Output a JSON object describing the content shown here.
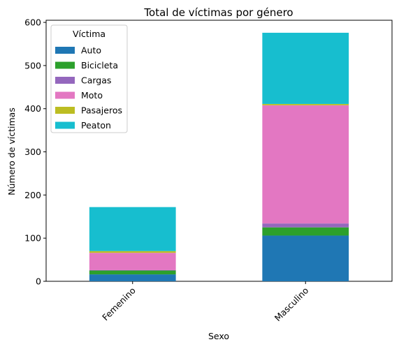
{
  "chart_data": {
    "type": "bar",
    "stacked": true,
    "title": "Total de víctimas por género",
    "xlabel": "Sexo",
    "ylabel": "Número de víctimas",
    "categories": [
      "Femenino",
      "Masculino"
    ],
    "ylim": [
      0,
      605
    ],
    "yticks": [
      0,
      100,
      200,
      300,
      400,
      500,
      600
    ],
    "xtick_rotation": 45,
    "legend": {
      "title": "Víctima",
      "placement": "upper-left"
    },
    "series": [
      {
        "name": "Auto",
        "color": "#1f77b4",
        "values": [
          16,
          106
        ]
      },
      {
        "name": "Bicicleta",
        "color": "#2ca02c",
        "values": [
          9,
          19
        ]
      },
      {
        "name": "Cargas",
        "color": "#9467bd",
        "values": [
          1,
          9
        ]
      },
      {
        "name": "Moto",
        "color": "#e377c2",
        "values": [
          40,
          274
        ]
      },
      {
        "name": "Pasajeros",
        "color": "#bcbd22",
        "values": [
          4,
          3
        ]
      },
      {
        "name": "Peaton",
        "color": "#17becf",
        "values": [
          102,
          165
        ]
      }
    ]
  }
}
